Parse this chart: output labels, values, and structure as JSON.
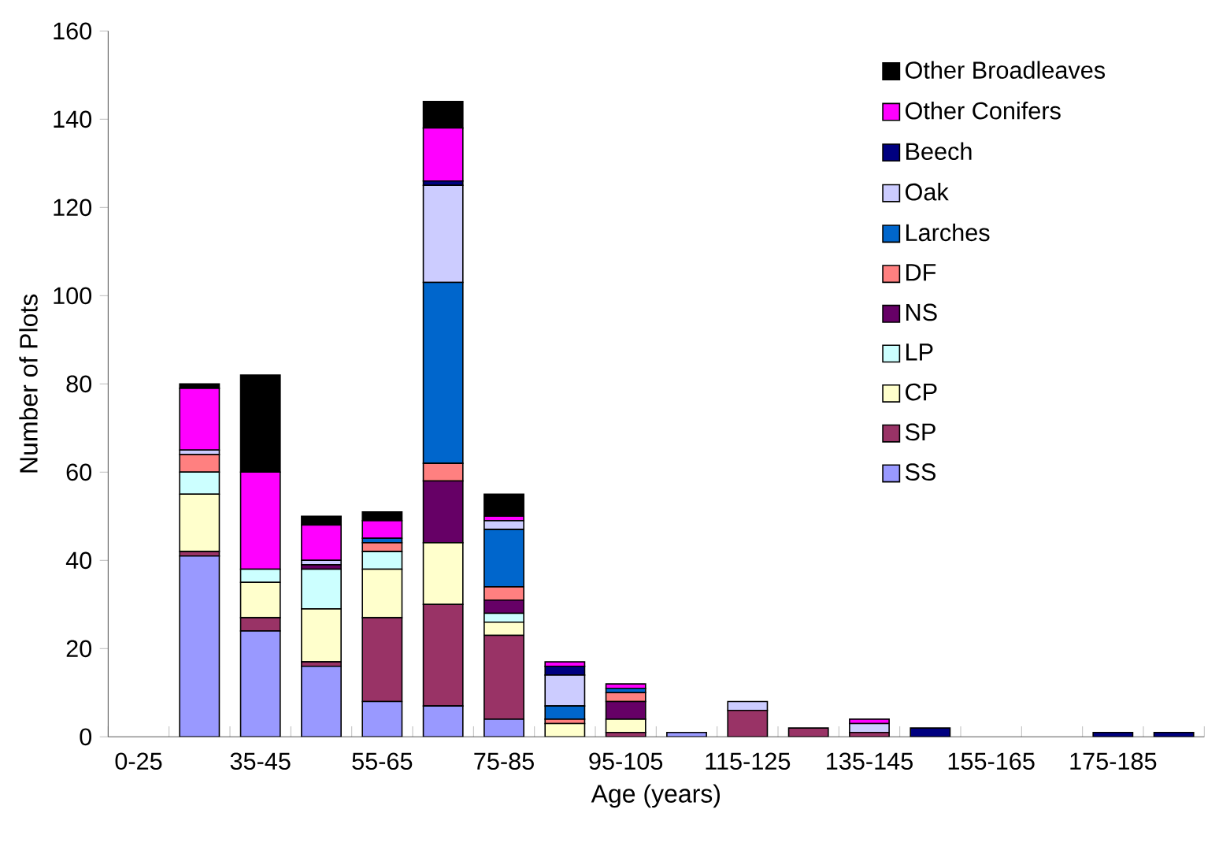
{
  "chart_data": {
    "type": "bar",
    "stacked": true,
    "xlabel": "Age (years)",
    "ylabel": "Number of Plots",
    "categories": [
      "0-25",
      null,
      "35-45",
      null,
      "55-65",
      null,
      "75-85",
      null,
      "95-105",
      null,
      "115-125",
      null,
      "135-145",
      null,
      "155-165",
      null,
      "175-185",
      null
    ],
    "ylim": [
      0,
      160
    ],
    "yticks": [
      0,
      20,
      40,
      60,
      80,
      100,
      120,
      140,
      160
    ],
    "legend": "top right",
    "series": [
      {
        "name": "SS",
        "color": "#9999ff",
        "values": [
          0,
          41,
          24,
          16,
          8,
          7,
          4,
          0,
          0,
          1,
          0,
          0,
          0,
          0,
          0,
          0,
          0,
          0
        ]
      },
      {
        "name": "SP",
        "color": "#993366",
        "values": [
          0,
          1,
          3,
          1,
          19,
          23,
          19,
          0,
          1,
          0,
          6,
          2,
          1,
          0,
          0,
          0,
          0,
          0
        ]
      },
      {
        "name": "CP",
        "color": "#ffffcc",
        "values": [
          0,
          13,
          8,
          12,
          11,
          14,
          3,
          3,
          3,
          0,
          0,
          0,
          0,
          0,
          0,
          0,
          0,
          0
        ]
      },
      {
        "name": "LP",
        "color": "#ccffff",
        "values": [
          0,
          5,
          3,
          9,
          4,
          0,
          2,
          0,
          0,
          0,
          0,
          0,
          0,
          0,
          0,
          0,
          0,
          0
        ]
      },
      {
        "name": "NS",
        "color": "#660066",
        "values": [
          0,
          0,
          0,
          1,
          0,
          14,
          3,
          0,
          4,
          0,
          0,
          0,
          0,
          0,
          0,
          0,
          0,
          0
        ]
      },
      {
        "name": "DF",
        "color": "#ff8080",
        "values": [
          0,
          4,
          0,
          0,
          2,
          4,
          3,
          1,
          2,
          0,
          0,
          0,
          0,
          0,
          0,
          0,
          0,
          0
        ]
      },
      {
        "name": "Larches",
        "color": "#0066cc",
        "values": [
          0,
          0,
          0,
          0,
          1,
          41,
          13,
          3,
          1,
          0,
          0,
          0,
          0,
          0,
          0,
          0,
          0,
          0
        ]
      },
      {
        "name": "Oak",
        "color": "#ccccff",
        "values": [
          0,
          1,
          0,
          1,
          0,
          22,
          2,
          7,
          0,
          0,
          2,
          0,
          2,
          0,
          0,
          0,
          0,
          0
        ]
      },
      {
        "name": "Beech",
        "color": "#000080",
        "values": [
          0,
          0,
          0,
          0,
          0,
          1,
          0,
          2,
          0,
          0,
          0,
          0,
          0,
          2,
          0,
          0,
          1,
          1
        ]
      },
      {
        "name": "Other Conifers",
        "color": "#ff00ff",
        "values": [
          0,
          14,
          22,
          8,
          4,
          12,
          1,
          1,
          1,
          0,
          0,
          0,
          1,
          0,
          0,
          0,
          0,
          0
        ]
      },
      {
        "name": "Other Broadleaves",
        "color": "#000000",
        "values": [
          0,
          1,
          22,
          2,
          2,
          6,
          5,
          0,
          0,
          0,
          0,
          0,
          0,
          0,
          0,
          0,
          0,
          0
        ]
      }
    ]
  }
}
